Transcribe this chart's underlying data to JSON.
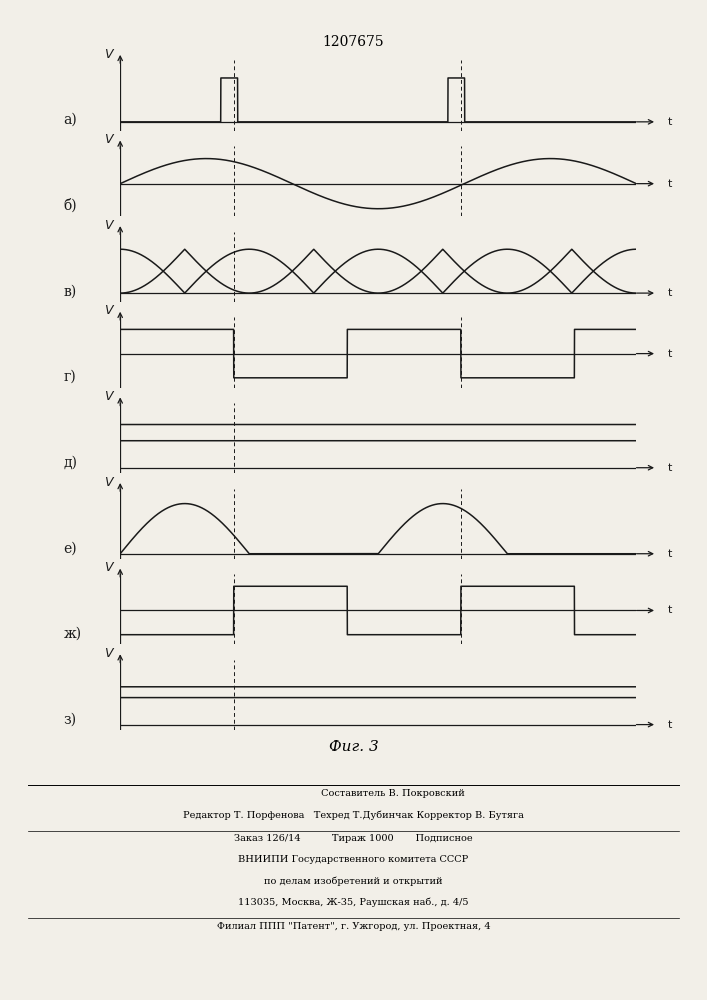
{
  "title": "1207675",
  "fig_label": "Фиг. 3",
  "subplots": [
    {
      "label": "а)",
      "type": "pulse_train"
    },
    {
      "label": "б)",
      "type": "sine"
    },
    {
      "label": "в)",
      "type": "fullwave_rect_down"
    },
    {
      "label": "г)",
      "type": "square_asym"
    },
    {
      "label": "д)",
      "type": "dc_flat"
    },
    {
      "label": "е)",
      "type": "halfwave_rect_up"
    },
    {
      "label": "ж)",
      "type": "square_delayed"
    },
    {
      "label": "з)",
      "type": "dc_low"
    }
  ],
  "vline_x": [
    0.22,
    0.66
  ],
  "bg_color": "#f2efe8",
  "lc": "#1a1a1a",
  "footer_line1": "                         Составитель В. Покровский",
  "footer_line2": "Редактор Т. Порфенова   Техред Т.Дубинчак Корректор В. Бутяга",
  "footer_line3": "Заказ 126/14          Тираж 1000       Подписное",
  "footer_line4": "ВНИИПИ Государственного комитета СССР",
  "footer_line5": "по делам изобретений и открытий",
  "footer_line6": "113035, Москва, Ж-35, Раушская наб., д. 4/5",
  "footer_line7": "Филиал ППП \"Патент\", г. Ужгород, ул. Проектная, 4"
}
